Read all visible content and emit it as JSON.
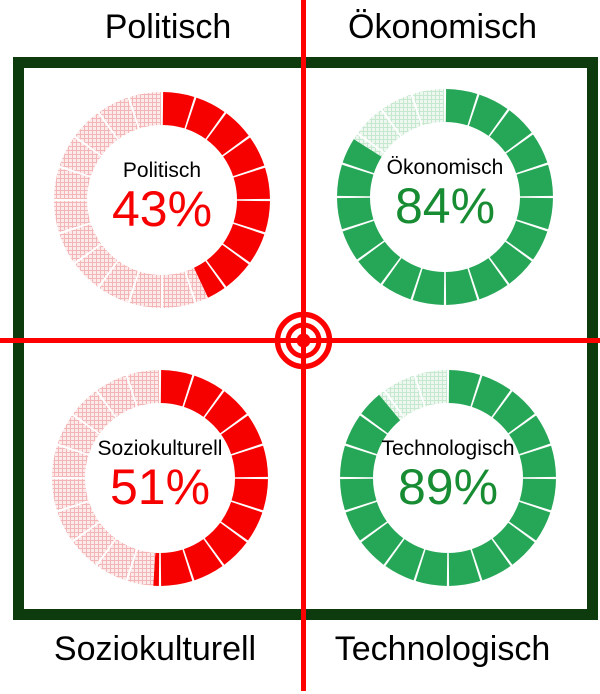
{
  "frame": {
    "border_color": "#0d3b0d"
  },
  "crosshair": {
    "color": "#ff0000"
  },
  "quadrant_labels": {
    "top_left": "Politisch",
    "top_right": "Ökonomisch",
    "bottom_left": "Soziokulturell",
    "bottom_right": "Technologisch"
  },
  "chart_data": [
    {
      "type": "donut",
      "quadrant": "top-left",
      "title": "Politisch",
      "value_pct": 43,
      "value_label": "43%",
      "segments": 20,
      "start_angle_deg": 0,
      "direction": "clockwise",
      "colors": {
        "filled": "#f70000",
        "value_text": "#f70000",
        "title_text": "#000000",
        "remainder_bg": "#fdeaea",
        "remainder_grid": "#f3b5b5"
      }
    },
    {
      "type": "donut",
      "quadrant": "top-right",
      "title": "Ökonomisch",
      "value_pct": 84,
      "value_label": "84%",
      "segments": 20,
      "start_angle_deg": 0,
      "direction": "clockwise",
      "colors": {
        "filled": "#26a657",
        "value_text": "#178c32",
        "title_text": "#000000",
        "remainder_bg": "#eef7f0",
        "remainder_grid": "#c6e8cf"
      }
    },
    {
      "type": "donut",
      "quadrant": "bottom-left",
      "title": "Soziokulturell",
      "value_pct": 51,
      "value_label": "51%",
      "segments": 20,
      "start_angle_deg": 0,
      "direction": "clockwise",
      "colors": {
        "filled": "#f70000",
        "value_text": "#f70000",
        "title_text": "#000000",
        "remainder_bg": "#fdeaea",
        "remainder_grid": "#f3b5b5"
      }
    },
    {
      "type": "donut",
      "quadrant": "bottom-right",
      "title": "Technologisch",
      "value_pct": 89,
      "value_label": "89%",
      "segments": 20,
      "start_angle_deg": 0,
      "direction": "clockwise",
      "colors": {
        "filled": "#26a657",
        "value_text": "#178c32",
        "title_text": "#000000",
        "remainder_bg": "#eef7f0",
        "remainder_grid": "#c6e8cf"
      }
    }
  ]
}
